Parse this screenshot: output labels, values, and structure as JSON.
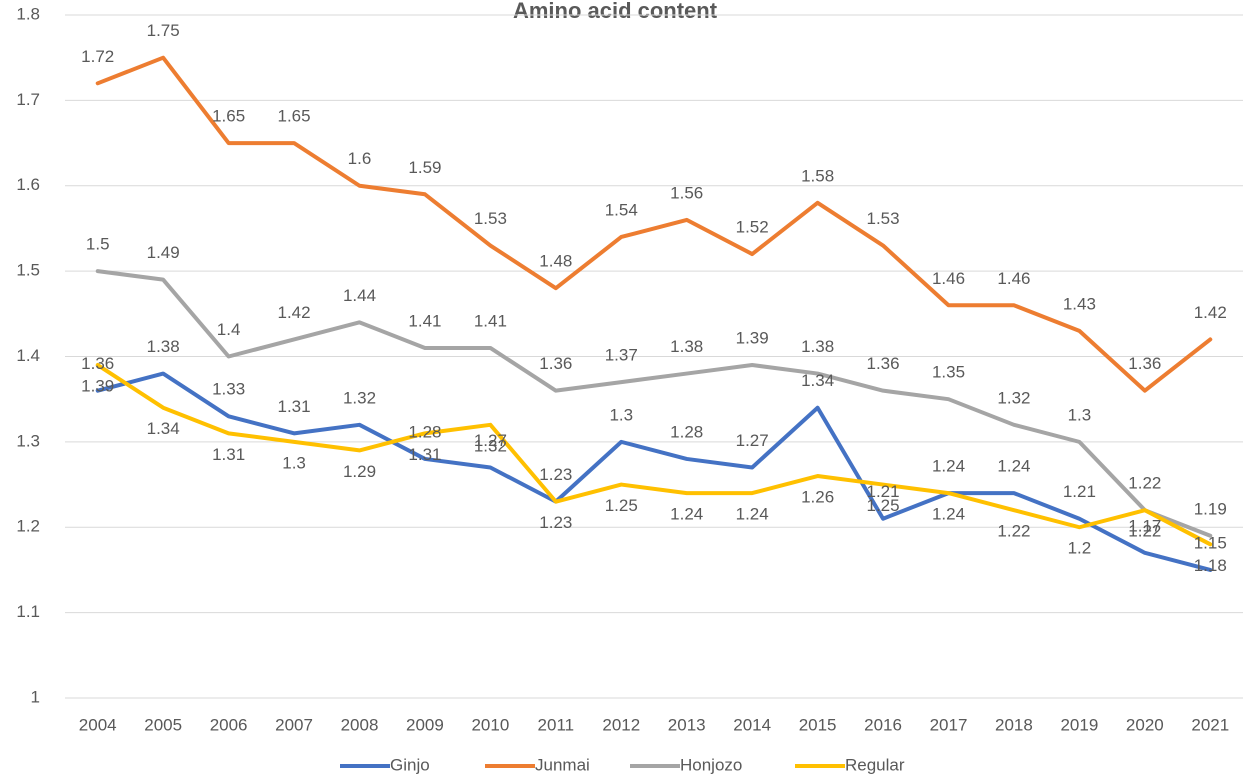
{
  "chart_data": {
    "type": "line",
    "title": "Amino acid content",
    "categories": [
      "2004",
      "2005",
      "2006",
      "2007",
      "2008",
      "2009",
      "2010",
      "2011",
      "2012",
      "2013",
      "2014",
      "2015",
      "2016",
      "2017",
      "2018",
      "2019",
      "2020",
      "2021"
    ],
    "series": [
      {
        "name": "Ginjo",
        "color": "#4472c4",
        "values": [
          1.36,
          1.38,
          1.33,
          1.31,
          1.32,
          1.28,
          1.27,
          1.23,
          1.3,
          1.28,
          1.27,
          1.34,
          1.21,
          1.24,
          1.24,
          1.21,
          1.17,
          1.15
        ]
      },
      {
        "name": "Junmai",
        "color": "#ed7d31",
        "values": [
          1.72,
          1.75,
          1.65,
          1.65,
          1.6,
          1.59,
          1.53,
          1.48,
          1.54,
          1.56,
          1.52,
          1.58,
          1.53,
          1.46,
          1.46,
          1.43,
          1.36,
          1.42
        ]
      },
      {
        "name": "Honjozo",
        "color": "#a5a5a5",
        "values": [
          1.5,
          1.49,
          1.4,
          1.42,
          1.44,
          1.41,
          1.41,
          1.36,
          1.37,
          1.38,
          1.39,
          1.38,
          1.36,
          1.35,
          1.32,
          1.3,
          1.22,
          1.19
        ]
      },
      {
        "name": "Regular",
        "color": "#ffc000",
        "values": [
          1.39,
          1.34,
          1.31,
          1.3,
          1.29,
          1.31,
          1.32,
          1.23,
          1.25,
          1.24,
          1.24,
          1.26,
          1.25,
          1.24,
          1.22,
          1.2,
          1.22,
          1.18
        ]
      }
    ],
    "ylim": [
      1,
      1.8
    ],
    "yticks": [
      1,
      1.1,
      1.2,
      1.3,
      1.4,
      1.5,
      1.6,
      1.7,
      1.8
    ],
    "grid": true,
    "legend": "bottom"
  }
}
